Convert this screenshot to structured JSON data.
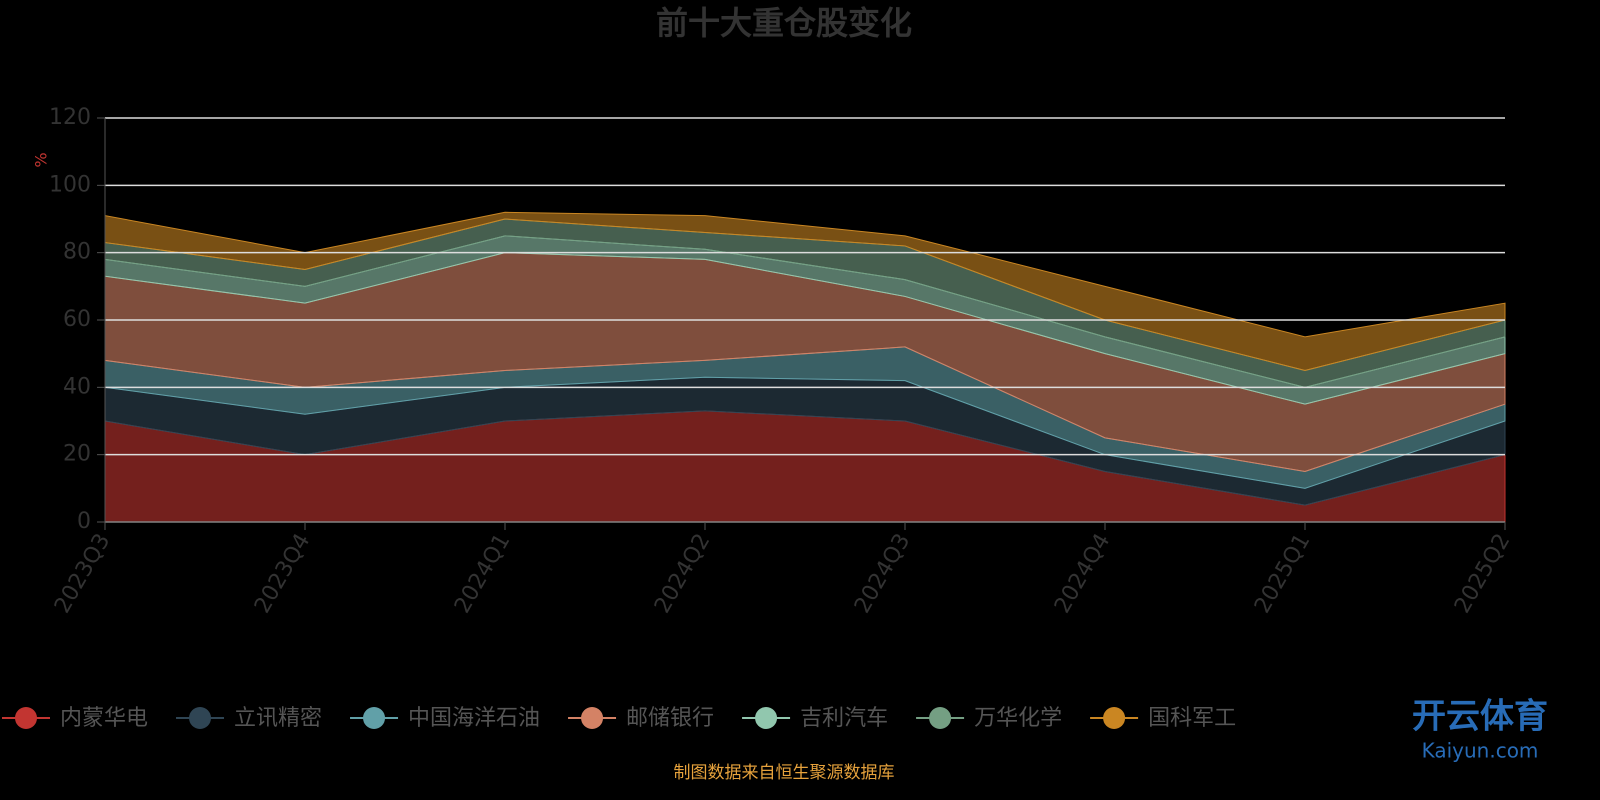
{
  "chart_data": {
    "type": "stacked-area",
    "title": "前十大重仓股变化",
    "y_label": "%",
    "categories": [
      "2023Q3",
      "2023Q4",
      "2024Q1",
      "2024Q2",
      "2024Q3",
      "2024Q4",
      "2025Q1",
      "2025Q2"
    ],
    "series": [
      {
        "name": "内蒙华电",
        "color": "#c23531",
        "values": [
          30,
          20,
          30,
          33,
          30,
          15,
          5,
          20
        ]
      },
      {
        "name": "立讯精密",
        "color": "#2f4554",
        "values": [
          10,
          12,
          10,
          10,
          12,
          5,
          5,
          10
        ]
      },
      {
        "name": "中国海洋石油",
        "color": "#61a0a8",
        "values": [
          8,
          8,
          5,
          5,
          10,
          5,
          5,
          5
        ]
      },
      {
        "name": "邮储银行",
        "color": "#d48265",
        "values": [
          25,
          25,
          35,
          30,
          15,
          25,
          20,
          15
        ]
      },
      {
        "name": "吉利汽车",
        "color": "#91c7ae",
        "values": [
          5,
          5,
          5,
          3,
          5,
          5,
          5,
          5
        ]
      },
      {
        "name": "万华化学",
        "color": "#749f83",
        "values": [
          5,
          5,
          5,
          5,
          10,
          5,
          5,
          5
        ]
      },
      {
        "name": "国科军工",
        "color": "#ca8622",
        "values": [
          8,
          5,
          2,
          5,
          3,
          10,
          10,
          5
        ]
      }
    ],
    "ylim": [
      0,
      120
    ],
    "yticks": [
      0,
      20,
      40,
      60,
      80,
      100,
      120
    ],
    "grid": true,
    "source": "制图数据来自恒生聚源数据库",
    "watermark": {
      "title": "开云体育",
      "subtitle": "Kaiyun.com"
    }
  }
}
